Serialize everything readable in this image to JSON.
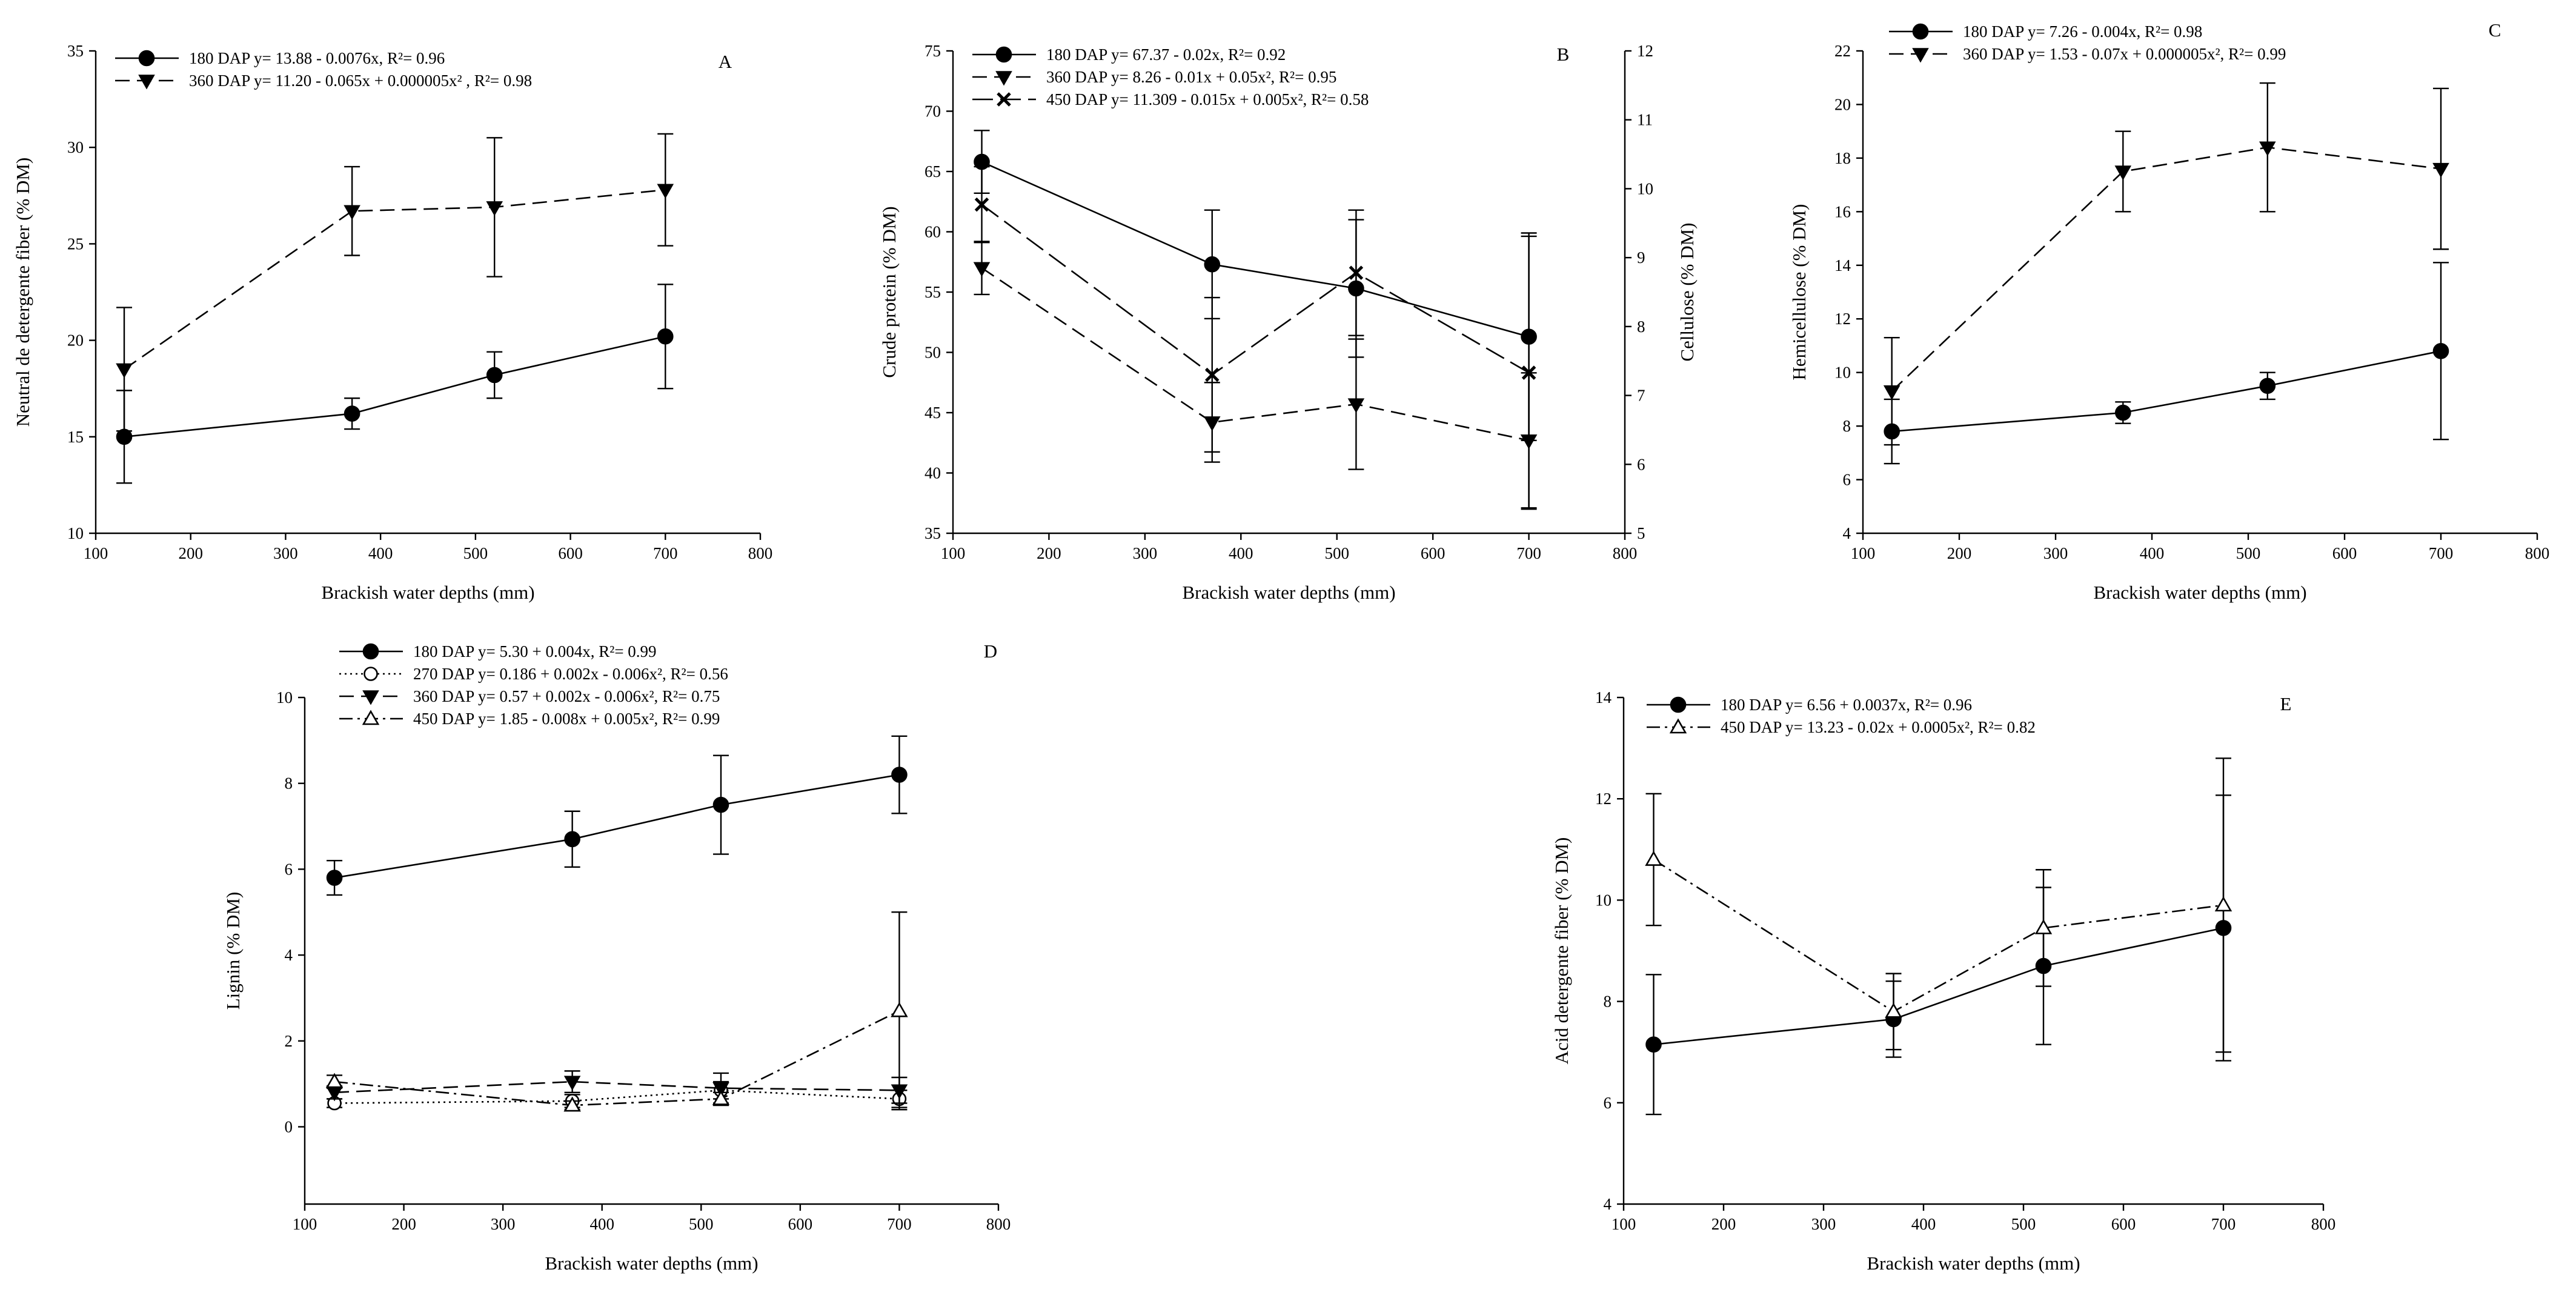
{
  "figure": {
    "background": "#ffffff",
    "ink": "#000000"
  },
  "chart_data": [
    {
      "id": "A",
      "type": "line",
      "letter": "A",
      "xlabel": "Brackish water depths (mm)",
      "ylabel": "Neutral de detergente fiber (% DM)",
      "xlim": [
        100,
        800
      ],
      "xticks": [
        100,
        200,
        300,
        400,
        500,
        600,
        700,
        800
      ],
      "xtick_labels": [
        "100",
        "200",
        "300",
        "400",
        "500",
        "600",
        "700",
        "800"
      ],
      "ylim": [
        10,
        35
      ],
      "yticks": [
        10,
        15,
        20,
        25,
        30,
        35
      ],
      "ytick_labels": [
        "10",
        "15",
        "20",
        "25",
        "30",
        "35"
      ],
      "legend_position": "top-left",
      "series": [
        {
          "name": "180 DAP",
          "legend": "180 DAP y= 13.88 - 0.0076x, R²= 0.96",
          "marker": "filled-circle",
          "dash": "solid",
          "x": [
            130,
            370,
            520,
            700
          ],
          "y": [
            15.0,
            16.2,
            18.2,
            20.2
          ],
          "err": [
            2.4,
            0.8,
            1.2,
            2.7
          ]
        },
        {
          "name": "360 DAP",
          "legend": "360 DAP y= 11.20 - 0.065x + 0.000005x² , R²= 0.98",
          "marker": "filled-triangle-down",
          "dash": "dashed",
          "x": [
            130,
            370,
            520,
            700
          ],
          "y": [
            18.5,
            26.7,
            26.9,
            27.8
          ],
          "err": [
            3.2,
            2.3,
            3.6,
            2.9
          ]
        }
      ]
    },
    {
      "id": "B",
      "type": "line",
      "letter": "B",
      "xlabel": "Brackish water depths (mm)",
      "ylabel": "Crude protein (% DM)",
      "y2label": "Cellulose (% DM)",
      "xlim": [
        100,
        800
      ],
      "xticks": [
        100,
        200,
        300,
        400,
        500,
        600,
        700,
        800
      ],
      "xtick_labels": [
        "100",
        "200",
        "300",
        "400",
        "500",
        "600",
        "700",
        "800"
      ],
      "ylim": [
        35,
        75
      ],
      "yticks": [
        35,
        40,
        45,
        50,
        55,
        60,
        65,
        70,
        75
      ],
      "ytick_labels": [
        "35",
        "40",
        "45",
        "50",
        "55",
        "60",
        "65",
        "70",
        "75"
      ],
      "y2lim": [
        5,
        12
      ],
      "y2ticks": [
        5,
        6,
        7,
        8,
        9,
        10,
        11,
        12
      ],
      "y2tick_labels": [
        "5",
        "6",
        "7",
        "8",
        "9",
        "10",
        "11",
        "12"
      ],
      "legend_position": "top-left",
      "series": [
        {
          "name": "180 DAP",
          "legend": "180 DAP y= 67.37 - 0.02x, R²= 0.92",
          "marker": "filled-circle",
          "dash": "solid",
          "axis": "left",
          "x": [
            130,
            370,
            520,
            700
          ],
          "y": [
            65.8,
            57.3,
            55.3,
            51.3
          ],
          "err": [
            2.6,
            4.5,
            5.7,
            8.6
          ]
        },
        {
          "name": "360 DAP",
          "legend": "360 DAP y= 8.26 - 0.01x + 0.05x²,  R²= 0.95",
          "marker": "filled-triangle-down",
          "dash": "dashed",
          "axis": "left",
          "x": [
            130,
            370,
            520,
            700
          ],
          "y": [
            57.0,
            44.2,
            45.7,
            42.7
          ],
          "err": [
            2.2,
            3.3,
            5.4,
            5.6
          ]
        },
        {
          "name": "450 DAP",
          "legend": "450 DAP y= 11.309 - 0.015x + 0.005x², R²= 0.58",
          "marker": "x-cross",
          "dash": "long-dash",
          "axis": "right",
          "x": [
            130,
            370,
            520,
            700
          ],
          "y": [
            9.77,
            7.3,
            8.78,
            7.33
          ],
          "err": [
            0.55,
            1.12,
            0.91,
            1.98
          ]
        }
      ]
    },
    {
      "id": "C",
      "type": "line",
      "letter": "C",
      "xlabel": "Brackish water depths (mm)",
      "ylabel": "Hemicellulose (% DM)",
      "xlim": [
        100,
        800
      ],
      "xticks": [
        100,
        200,
        300,
        400,
        500,
        600,
        700,
        800
      ],
      "xtick_labels": [
        "100",
        "200",
        "300",
        "400",
        "500",
        "600",
        "700",
        "800"
      ],
      "ylim": [
        4,
        22
      ],
      "yticks": [
        4,
        6,
        8,
        10,
        12,
        14,
        16,
        18,
        20,
        22
      ],
      "ytick_labels": [
        "4",
        "6",
        "8",
        "10",
        "12",
        "14",
        "16",
        "18",
        "20",
        "22"
      ],
      "legend_position": "top-left",
      "series": [
        {
          "name": "180 DAP",
          "legend": "180 DAP y= 7.26 - 0.004x,  R²= 0.98",
          "marker": "filled-circle",
          "dash": "solid",
          "x": [
            130,
            370,
            520,
            700
          ],
          "y": [
            7.8,
            8.5,
            9.5,
            10.8
          ],
          "err": [
            1.2,
            0.4,
            0.5,
            3.3
          ]
        },
        {
          "name": "360 DAP",
          "legend": "360 DAP y= 1.53 - 0.07x + 0.000005x², R²= 0.99",
          "marker": "filled-triangle-down",
          "dash": "dashed",
          "x": [
            130,
            370,
            520,
            700
          ],
          "y": [
            9.3,
            17.5,
            18.4,
            17.6
          ],
          "err": [
            2.0,
            1.5,
            2.4,
            3.0
          ]
        }
      ]
    },
    {
      "id": "D",
      "type": "line",
      "letter": "D",
      "xlabel": "Brackish water depths (mm)",
      "ylabel": "Lignin (% DM)",
      "xlim": [
        100,
        800
      ],
      "xticks": [
        100,
        200,
        300,
        400,
        500,
        600,
        700,
        800
      ],
      "xtick_labels": [
        "100",
        "200",
        "300",
        "400",
        "500",
        "600",
        "700",
        "800"
      ],
      "ylim": [
        -1.8,
        10
      ],
      "yticks": [
        0,
        2,
        4,
        6,
        8,
        10
      ],
      "ytick_labels": [
        "0",
        "2",
        "4",
        "6",
        "8",
        "10"
      ],
      "legend_position": "top-left",
      "series": [
        {
          "name": "180 DAP",
          "legend": "180 DAP y= 5.30 + 0.004x, R²= 0.99",
          "marker": "filled-circle",
          "dash": "solid",
          "x": [
            130,
            370,
            520,
            700
          ],
          "y": [
            5.8,
            6.7,
            7.5,
            8.2
          ],
          "err": [
            0.4,
            0.65,
            1.15,
            0.9
          ]
        },
        {
          "name": "270 DAP",
          "legend": "270 DAP y= 0.186 + 0.002x - 0.006x², R²= 0.56",
          "marker": "open-circle",
          "dash": "dotted",
          "x": [
            130,
            370,
            520,
            700
          ],
          "y": [
            0.55,
            0.6,
            0.85,
            0.65
          ],
          "err": [
            0.1,
            0.15,
            0.2,
            0.2
          ]
        },
        {
          "name": "360 DAP",
          "legend": "360 DAP y= 0.57 + 0.002x - 0.006x², R²= 0.75",
          "marker": "filled-triangle-down",
          "dash": "dashed",
          "x": [
            130,
            370,
            520,
            700
          ],
          "y": [
            0.8,
            1.05,
            0.9,
            0.85
          ],
          "err": [
            0.15,
            0.25,
            0.35,
            0.3
          ]
        },
        {
          "name": "450 DAP",
          "legend": "450 DAP y= 1.85 - 0.008x + 0.005x², R²= 0.99",
          "marker": "open-triangle-up",
          "dash": "dash-dot",
          "x": [
            130,
            370,
            520,
            700
          ],
          "y": [
            1.05,
            0.5,
            0.65,
            2.7
          ],
          "err": [
            0.15,
            0.1,
            0.15,
            2.3
          ]
        }
      ]
    },
    {
      "id": "E",
      "type": "line",
      "letter": "E",
      "xlabel": "Brackish water depths (mm)",
      "ylabel": "Acid detergente fiber (% DM)",
      "xlim": [
        100,
        800
      ],
      "xticks": [
        100,
        200,
        300,
        400,
        500,
        600,
        700,
        800
      ],
      "xtick_labels": [
        "100",
        "200",
        "300",
        "400",
        "500",
        "600",
        "700",
        "800"
      ],
      "ylim": [
        4,
        14
      ],
      "yticks": [
        4,
        6,
        8,
        10,
        12,
        14
      ],
      "ytick_labels": [
        "4",
        "6",
        "8",
        "10",
        "12",
        "14"
      ],
      "legend_position": "top-left",
      "series": [
        {
          "name": "180 DAP",
          "legend": "180 DAP y= 6.56 + 0.0037x, R²= 0.96",
          "marker": "filled-circle",
          "dash": "solid",
          "x": [
            130,
            370,
            520,
            700
          ],
          "y": [
            7.15,
            7.65,
            8.7,
            9.45
          ],
          "err": [
            1.38,
            0.75,
            1.55,
            2.62
          ]
        },
        {
          "name": "450 DAP",
          "legend": "450 DAP y= 13.23 - 0.02x + 0.0005x², R²= 0.82",
          "marker": "open-triangle-up",
          "dash": "dash-dot",
          "x": [
            130,
            370,
            520,
            700
          ],
          "y": [
            10.8,
            7.8,
            9.45,
            9.9
          ],
          "err": [
            1.3,
            0.75,
            1.15,
            2.9
          ]
        }
      ]
    }
  ]
}
